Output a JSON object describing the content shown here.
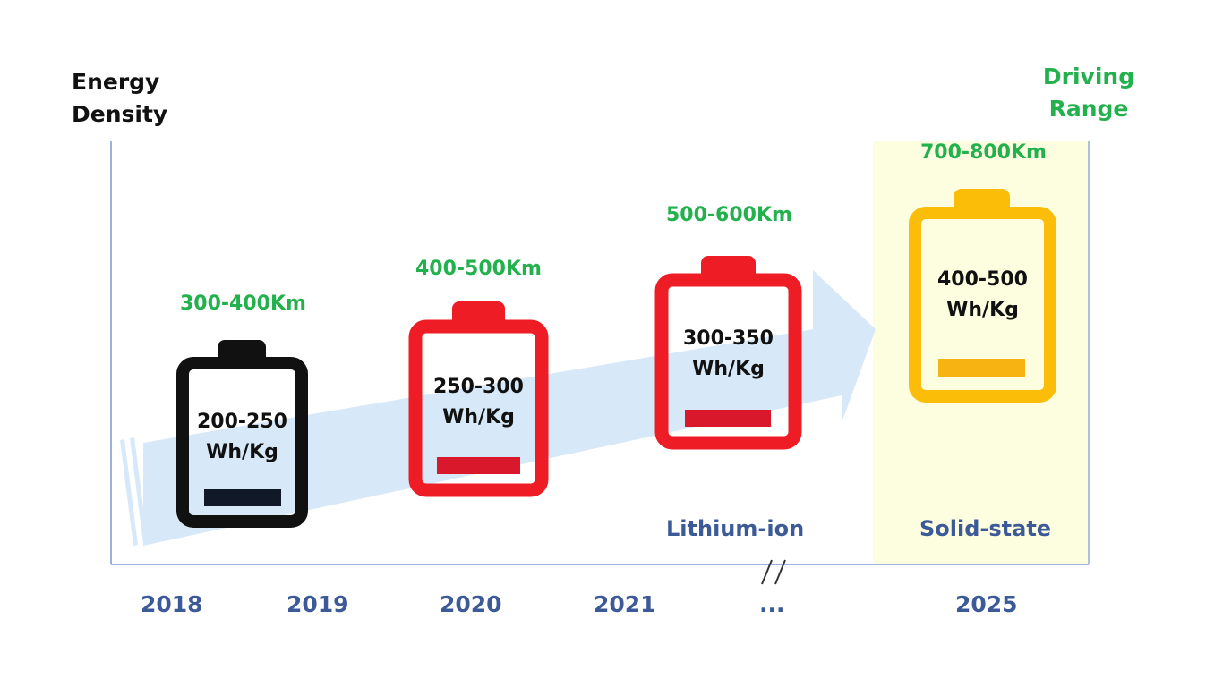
{
  "axis": {
    "left_title": [
      "Energy",
      "Density"
    ],
    "right_title": [
      "Driving",
      "Range"
    ],
    "years": [
      "2018",
      "2019",
      "2020",
      "2021",
      "...",
      "2025"
    ],
    "break_mark": "//"
  },
  "batteries": [
    {
      "range": "300-400Km",
      "density": [
        "200-250",
        "Wh/Kg"
      ],
      "color": "#111111",
      "level_color": "#111827"
    },
    {
      "range": "400-500Km",
      "density": [
        "250-300",
        "Wh/Kg"
      ],
      "color": "#ee1c24",
      "level_color": "#d9182b"
    },
    {
      "range": "500-600Km",
      "density": [
        "300-350",
        "Wh/Kg"
      ],
      "color": "#ee1c24",
      "level_color": "#d9182b"
    },
    {
      "range": "700-800Km",
      "density": [
        "400-500",
        "Wh/Kg"
      ],
      "color": "#fbbd08",
      "level_color": "#f6b312"
    }
  ],
  "technologies": [
    "Lithium-ion",
    "Solid-state"
  ],
  "colors": {
    "highlight_band": "#fdfde0",
    "trend_arrow": "#d7e9f9",
    "axis_line": "#7b96d0",
    "range_text": "#22b14c",
    "year_text": "#3d5a98"
  },
  "icons": [
    "battery-icon",
    "trend-arrow-icon"
  ]
}
